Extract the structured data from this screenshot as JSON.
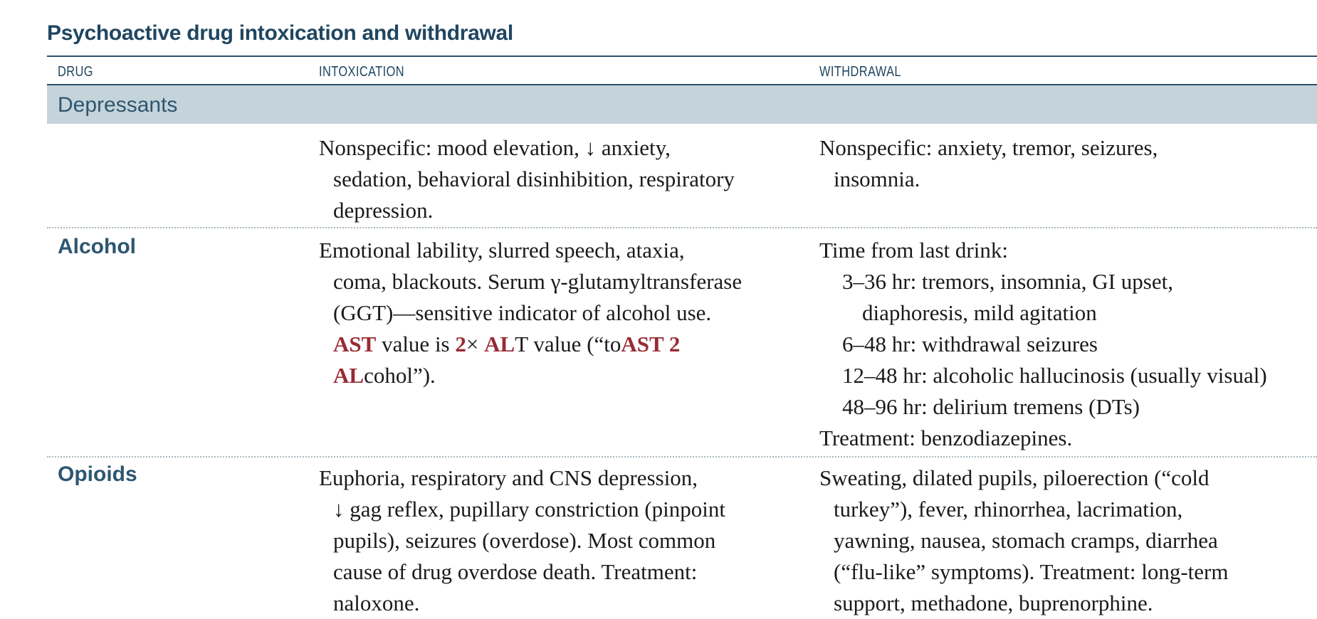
{
  "title": "Psychoactive drug intoxication and withdrawal",
  "columns": {
    "drug": "DRUG",
    "intoxication": "INTOXICATION",
    "withdrawal": "WITHDRAWAL"
  },
  "section": {
    "label": "Depressants"
  },
  "rows": [
    {
      "drug": "",
      "intoxication": [
        "Nonspecific: mood elevation, ↓ anxiety,",
        "sedation, behavioral disinhibition, respiratory",
        "depression."
      ],
      "withdrawal": [
        "Nonspecific: anxiety, tremor, seizures,",
        "insomnia."
      ]
    },
    {
      "drug": "Alcohol",
      "intoxication": [
        "Emotional lability, slurred speech, ataxia,",
        "coma, blackouts. Serum γ-glutamyltransferase",
        "(GGT)—sensitive indicator of alcohol use."
      ],
      "intoxication_mnemonic": {
        "l4_a": "AST",
        "l4_b": " value is ",
        "l4_c": "2",
        "l4_d": "× ",
        "l4_e": "AL",
        "l4_f": "T value (“to",
        "l4_g": "AST 2",
        "l5_a": "AL",
        "l5_b": "cohol”)."
      },
      "withdrawal_intro": "Time from last drink:",
      "withdrawal_stages": [
        "3–36 hr: tremors, insomnia, GI upset,",
        "diaphoresis, mild agitation",
        "6–48 hr: withdrawal seizures",
        "12–48 hr: alcoholic hallucinosis (usually visual)",
        "48–96 hr: delirium tremens (DTs)"
      ],
      "withdrawal_treatment": "Treatment: benzodiazepines."
    },
    {
      "drug": "Opioids",
      "intoxication": [
        "Euphoria, respiratory and CNS depression,",
        "↓ gag reflex, pupillary constriction (pinpoint",
        "pupils), seizures (overdose). Most common",
        "cause of drug overdose death. Treatment:",
        "naloxone."
      ],
      "withdrawal": [
        "Sweating, dilated pupils, piloerection (“cold",
        "turkey”), fever, rhinorrhea, lacrimation,",
        "yawning, nausea, stomach cramps, diarrhea",
        "(“flu-like” symptoms). Treatment: long-term",
        "support, methadone, buprenorphine."
      ]
    }
  ]
}
